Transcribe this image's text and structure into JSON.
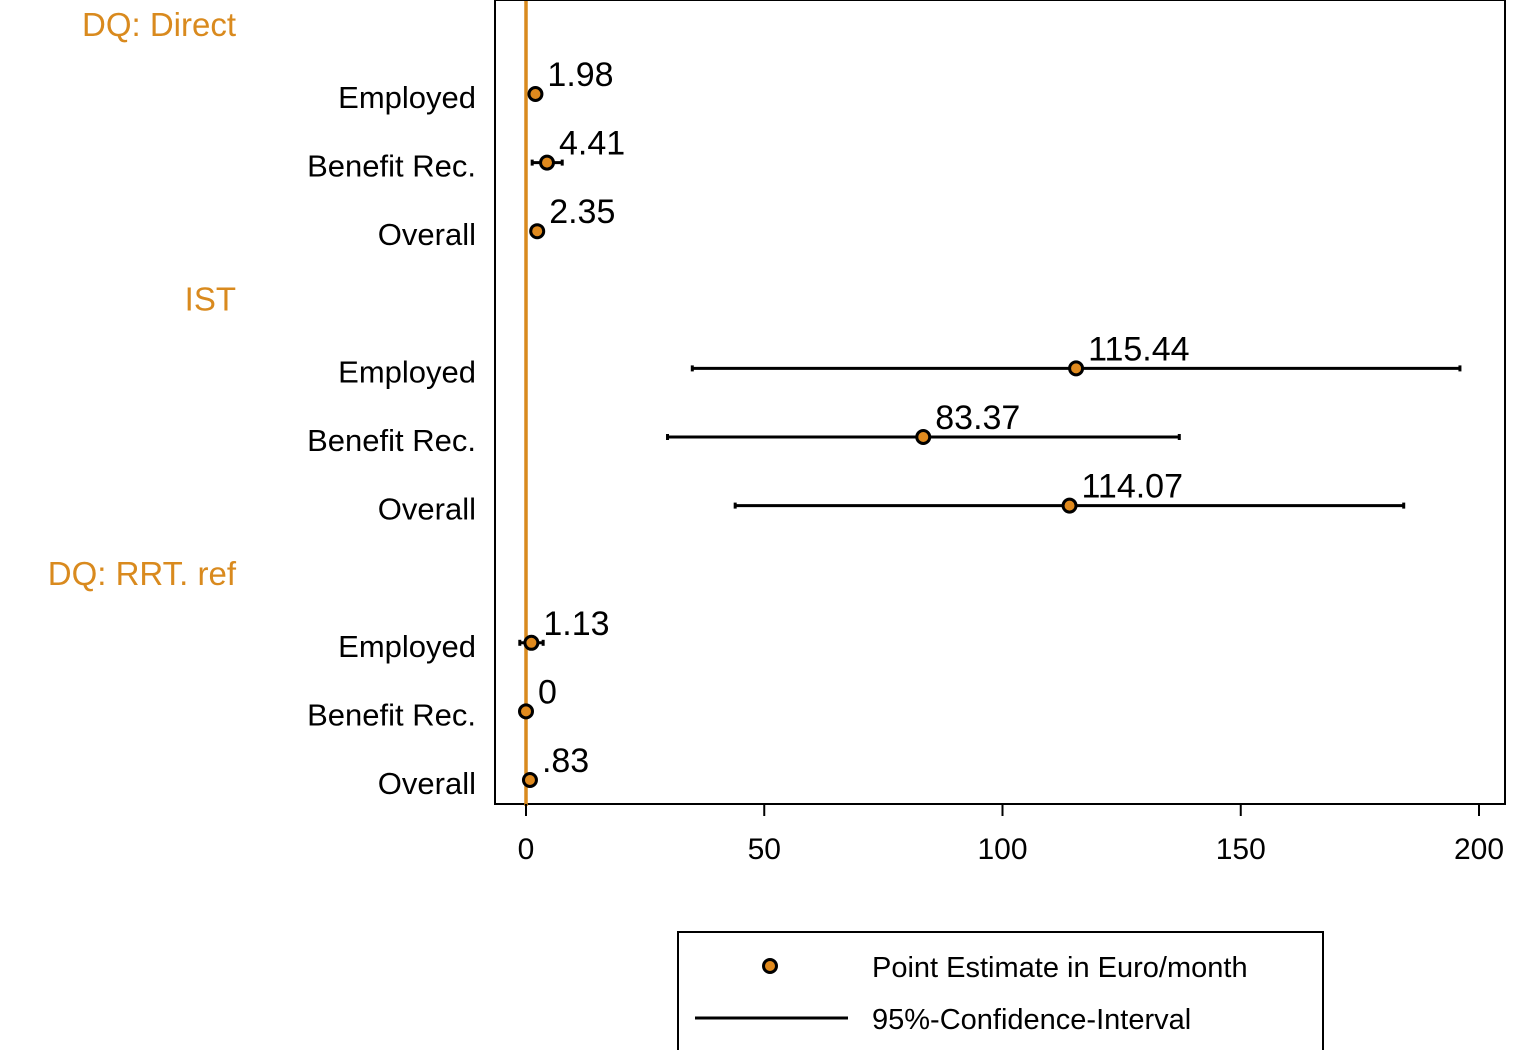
{
  "chart_data": {
    "type": "scatter",
    "subtype": "coefficient-plot-with-confidence-intervals",
    "orientation": "horizontal",
    "xlim": [
      -6,
      204
    ],
    "x_ticks": [
      0,
      50,
      100,
      150,
      200
    ],
    "x_tick_labels": [
      "0",
      "50",
      "100",
      "150",
      "200"
    ],
    "reference_line_x": 0,
    "grid": false,
    "groups": [
      {
        "label": "DQ: Direct",
        "rows": [
          {
            "label": "Employed",
            "estimate": 1.98,
            "value_label": "1.98",
            "ci": [
              1.2,
              2.8
            ]
          },
          {
            "label": "Benefit Rec.",
            "estimate": 4.41,
            "value_label": "4.41",
            "ci": [
              1.3,
              7.6
            ]
          },
          {
            "label": "Overall",
            "estimate": 2.35,
            "value_label": "2.35",
            "ci": [
              1.5,
              3.2
            ]
          }
        ]
      },
      {
        "label": "IST",
        "rows": [
          {
            "label": "Employed",
            "estimate": 115.44,
            "value_label": "115.44",
            "ci": [
              34.9,
              196
            ]
          },
          {
            "label": "Benefit Rec.",
            "estimate": 83.37,
            "value_label": "83.37",
            "ci": [
              29.7,
              137.1
            ]
          },
          {
            "label": "Overall",
            "estimate": 114.07,
            "value_label": "114.07",
            "ci": [
              43.9,
              184.2
            ]
          }
        ]
      },
      {
        "label": "DQ: RRT. ref",
        "rows": [
          {
            "label": "Employed",
            "estimate": 1.13,
            "value_label": "1.13",
            "ci": [
              -1.3,
              3.6
            ]
          },
          {
            "label": "Benefit Rec.",
            "estimate": 0,
            "value_label": "0",
            "ci": [
              -0.2,
              0.2
            ]
          },
          {
            "label": "Overall",
            "estimate": 0.83,
            "value_label": ".83",
            "ci": [
              0.3,
              1.4
            ]
          }
        ]
      }
    ],
    "legend": {
      "placement": "bottom",
      "entries": [
        {
          "marker": "point",
          "label": "Point Estimate in Euro/month"
        },
        {
          "marker": "line",
          "label": "95%-Confidence-Interval"
        }
      ]
    },
    "colors": {
      "group_label": "#D98A1E",
      "reference_line": "#D98A1E",
      "marker_fill": "#E08A1E",
      "marker_edge": "#000000",
      "ci_line": "#000000",
      "axis": "#000000",
      "text": "#000000"
    }
  }
}
